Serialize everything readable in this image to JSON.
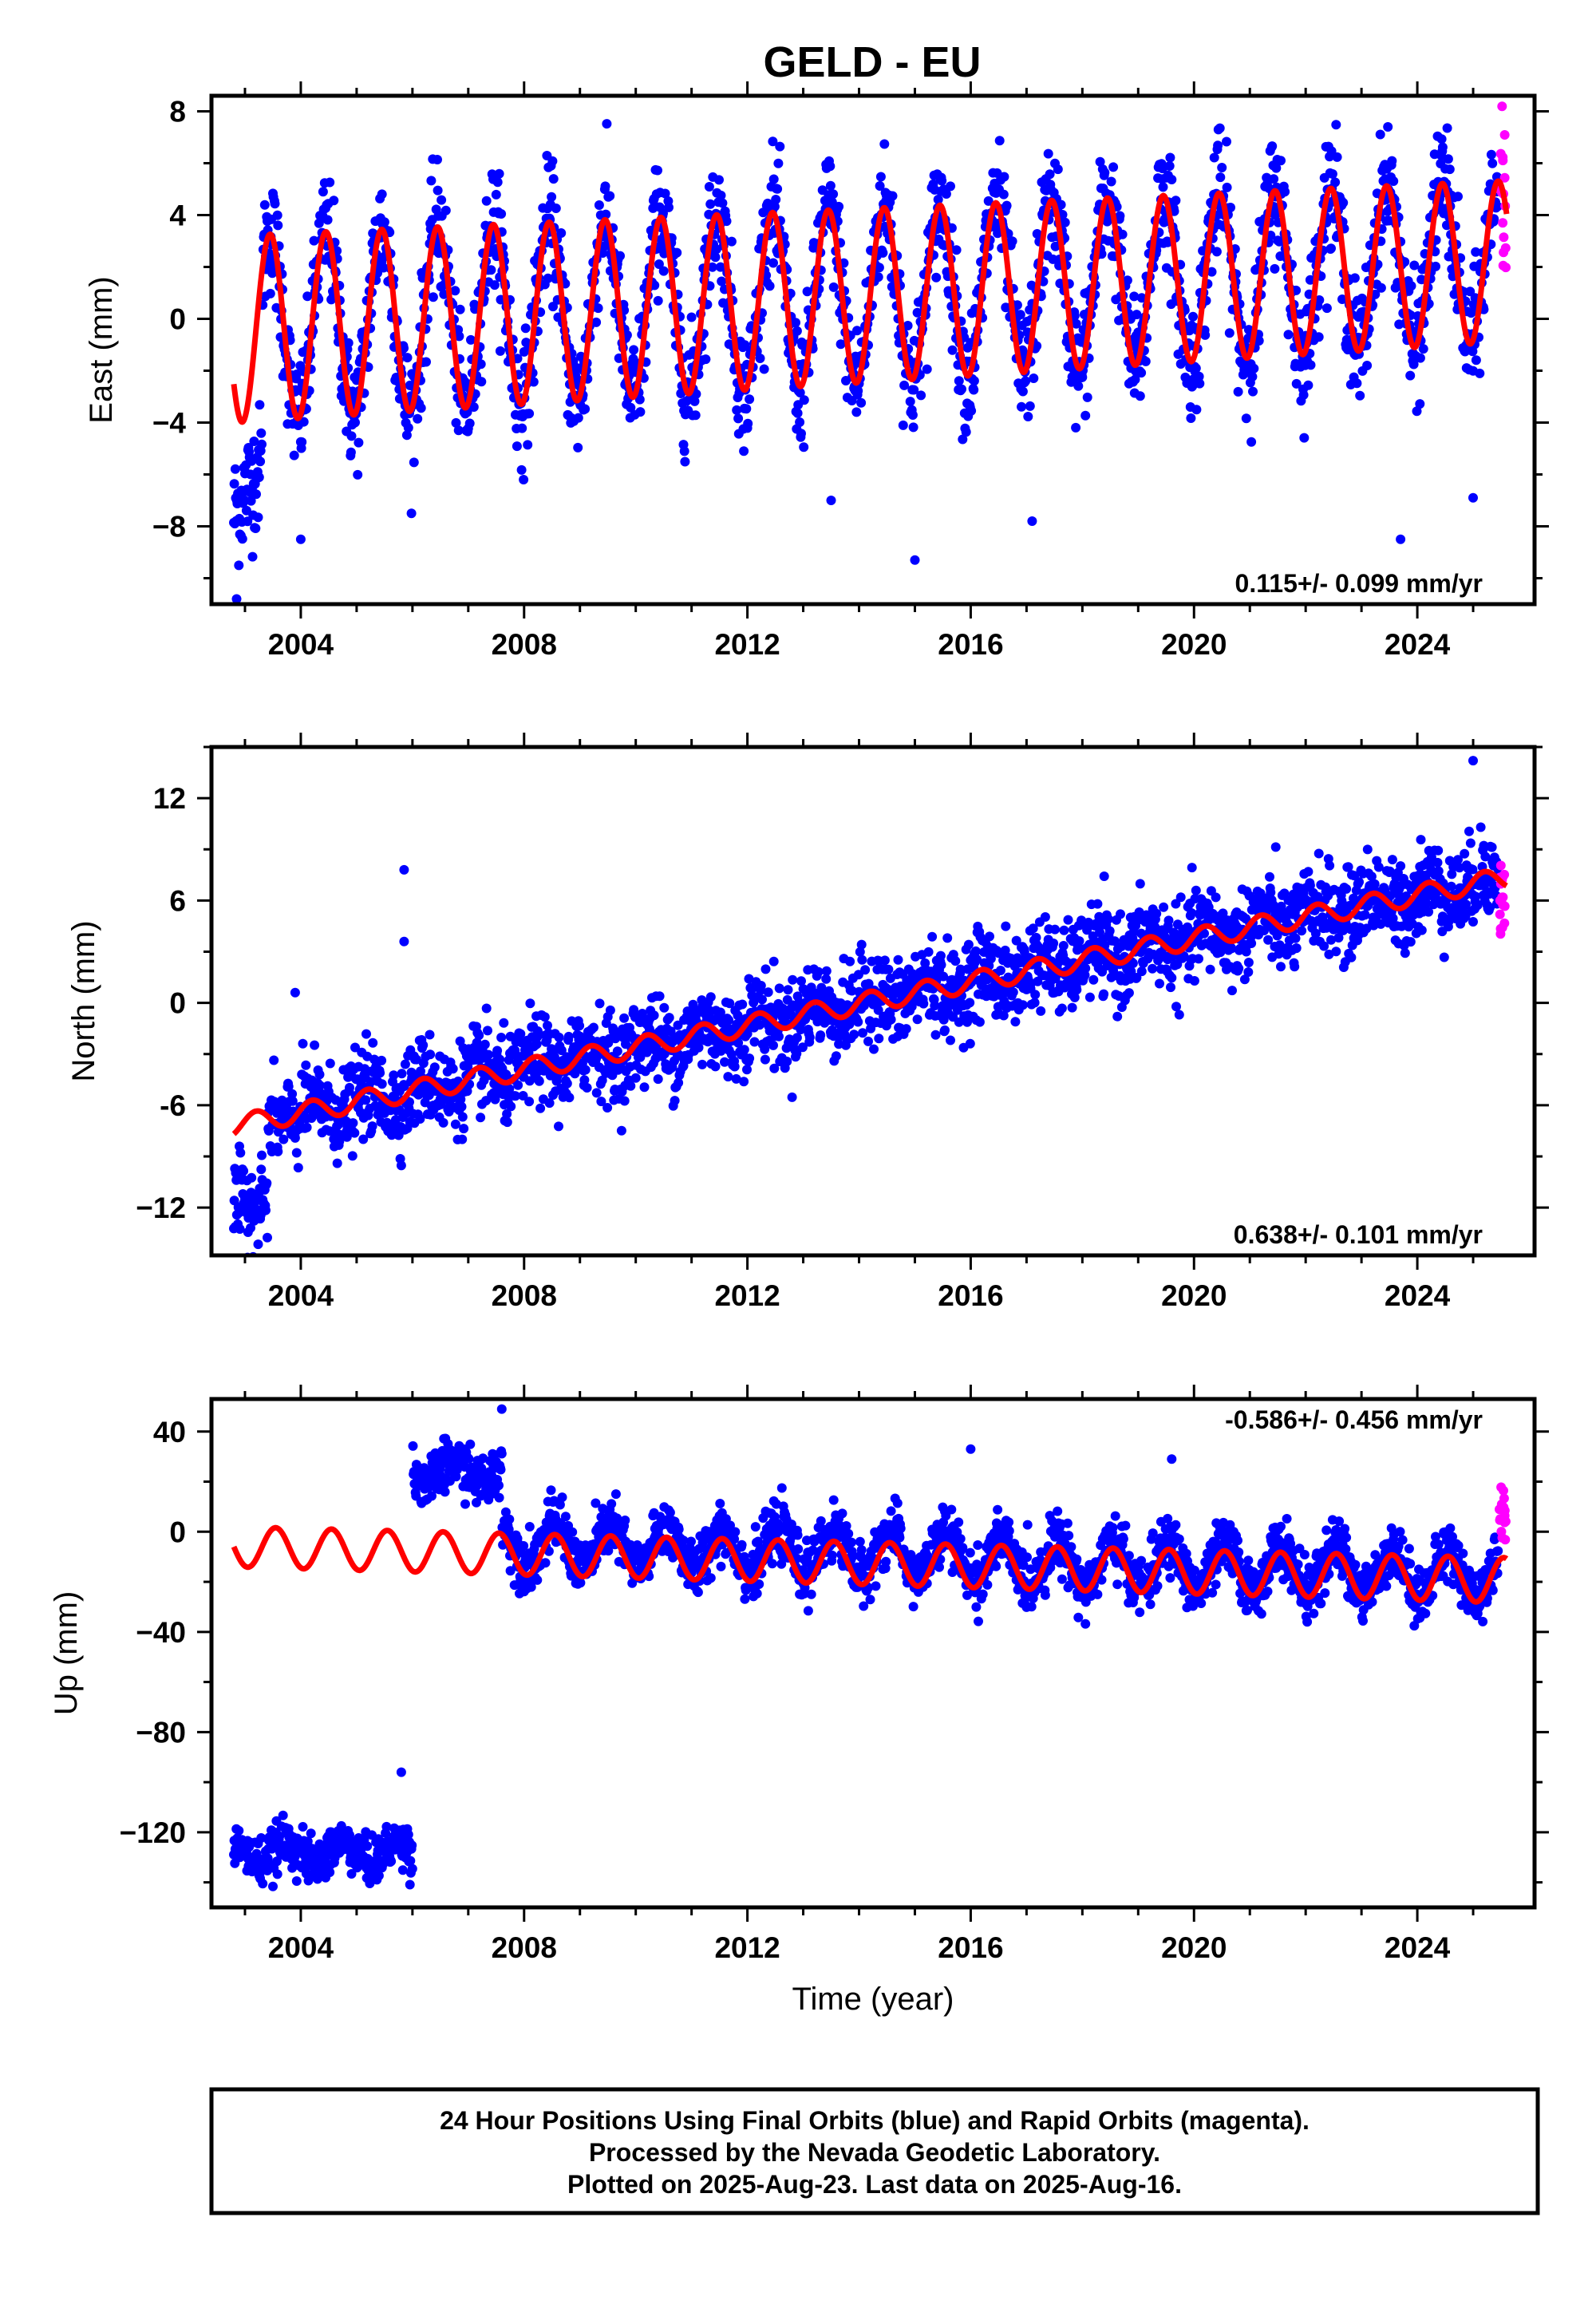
{
  "title": "GELD - EU",
  "colors": {
    "final": "#0000ff",
    "rapid": "#ff00ff",
    "model": "#ff0000",
    "frame": "#000000"
  },
  "caption": {
    "lines": [
      "24 Hour Positions Using Final Orbits (blue) and Rapid Orbits (magenta).",
      "Processed by the Nevada Geodetic Laboratory.",
      "Plotted on 2025-Aug-23. Last data on 2025-Aug-16."
    ]
  },
  "chart_data": [
    {
      "type": "scatter",
      "ylabel": "East (mm)",
      "xlabel": "",
      "rate_label": "0.115+/- 0.099 mm/yr",
      "xlim": [
        2002.4,
        2026.1
      ],
      "ylim": [
        -11,
        8.6
      ],
      "xticks": [
        2004,
        2008,
        2012,
        2016,
        2020,
        2024
      ],
      "yticks": [
        -8,
        -4,
        0,
        4,
        8
      ],
      "yticklabels": [
        "−8",
        "−4",
        "0",
        "4",
        "8"
      ],
      "grid": false,
      "model": {
        "offset": -0.4,
        "rate": 0.115,
        "amp_start": 3.6,
        "amp_end": 3.1,
        "phase_year": 2003.45,
        "start": 2002.8,
        "end": 2025.6
      },
      "series_notes": "Final-orbit daily positions (blue) 2002.8-2025.4 oscillating between about -4 and +5 mm; rapid-orbit points (magenta) about 2025.5-2025.6 between 1 and 8 mm; model curve (red).",
      "outliers": [
        [
          2002.85,
          -10.8
        ],
        [
          2004.0,
          -8.5
        ],
        [
          2015.0,
          -9.3
        ],
        [
          2017.1,
          -7.8
        ],
        [
          2023.7,
          -8.5
        ],
        [
          2025.0,
          -6.9
        ],
        [
          2013.5,
          -7.0
        ]
      ],
      "rapid_range": [
        1.2,
        8.2
      ]
    },
    {
      "type": "scatter",
      "ylabel": "North (mm)",
      "xlabel": "",
      "rate_label": "0.638+/- 0.101 mm/yr",
      "xlim": [
        2002.4,
        2026.1
      ],
      "ylim": [
        -14.8,
        15
      ],
      "xticks": [
        2004,
        2008,
        2012,
        2016,
        2020,
        2024
      ],
      "yticks": [
        -12,
        -6,
        0,
        6,
        12
      ],
      "yticklabels": [
        "−12",
        "-6",
        "0",
        "6",
        "12"
      ],
      "grid": false,
      "model": {
        "offset": -7.2,
        "rate": 0.638,
        "amp_start": 0.6,
        "amp_end": 0.6,
        "phase_year": 2003.2,
        "start": 2002.8,
        "end": 2025.6
      },
      "series_notes": "North positions trend from about -12 mm in 2003 to about +7 mm in 2025; rapid-orbit points near 2025.5.",
      "outliers": [
        [
          2005.85,
          7.8
        ],
        [
          2005.85,
          3.6
        ],
        [
          2003.9,
          0.6
        ],
        [
          2025.0,
          14.2
        ]
      ],
      "rapid_range": [
        4.0,
        8.5
      ]
    },
    {
      "type": "scatter",
      "ylabel": "Up (mm)",
      "xlabel": "Time (year)",
      "rate_label": "-0.586+/- 0.456 mm/yr",
      "xlim": [
        2002.4,
        2026.1
      ],
      "ylim": [
        -150,
        53
      ],
      "xticks": [
        2004,
        2008,
        2012,
        2016,
        2020,
        2024
      ],
      "yticks": [
        -120,
        -80,
        -40,
        0,
        40
      ],
      "yticklabels": [
        "−120",
        "−80",
        "−40",
        "0",
        "40"
      ],
      "grid": false,
      "model": {
        "offset": -6,
        "rate": -0.586,
        "amp_start": 8,
        "amp_end": 9,
        "phase_year": 2003.55,
        "start": 2002.8,
        "end": 2025.6
      },
      "series_notes": "Up positions near -128 mm (2002.8-2006.0), near +25 mm (2006.0-2007.6), then near 0 mm with seasonal signal to 2025.5.",
      "outliers": [
        [
          2005.8,
          -96
        ],
        [
          2007.6,
          49
        ],
        [
          2019.6,
          29
        ],
        [
          2016.0,
          33
        ]
      ],
      "rapid_range": [
        -4,
        18
      ]
    }
  ]
}
